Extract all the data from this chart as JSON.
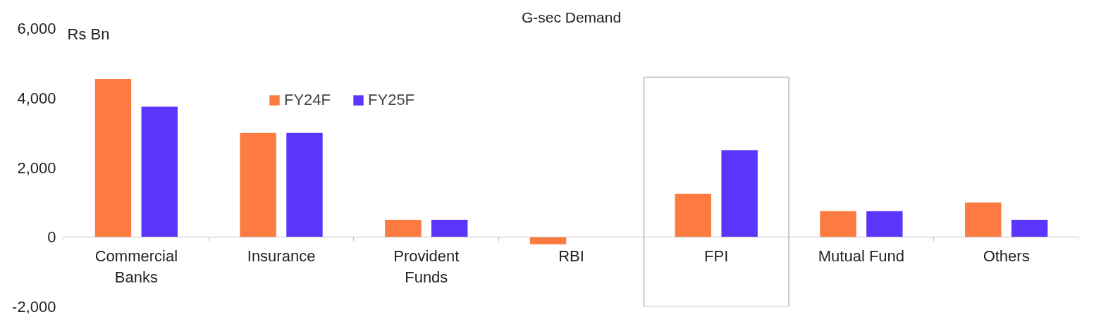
{
  "chart_data": {
    "type": "bar",
    "title": "G-sec Demand",
    "ylabel": "Rs Bn",
    "categories": [
      "Commercial\nBanks",
      "Insurance",
      "Provident\nFunds",
      "RBI",
      "FPI",
      "Mutual Fund",
      "Others"
    ],
    "series": [
      {
        "name": "FY24F",
        "color": "#fd7b41",
        "values": [
          4550,
          3000,
          500,
          -200,
          1250,
          750,
          1000
        ]
      },
      {
        "name": "FY25F",
        "color": "#5b35fb",
        "values": [
          3750,
          3000,
          500,
          0,
          2500,
          750,
          500
        ]
      }
    ],
    "ylim": [
      -2000,
      6000
    ],
    "yticks": [
      {
        "value": 6000,
        "label": "6,000"
      },
      {
        "value": 4000,
        "label": "4,000"
      },
      {
        "value": 2000,
        "label": "2,000"
      },
      0,
      {
        "value": -2000,
        "label": "-2,000"
      }
    ],
    "grid": false,
    "legend": "top"
  }
}
